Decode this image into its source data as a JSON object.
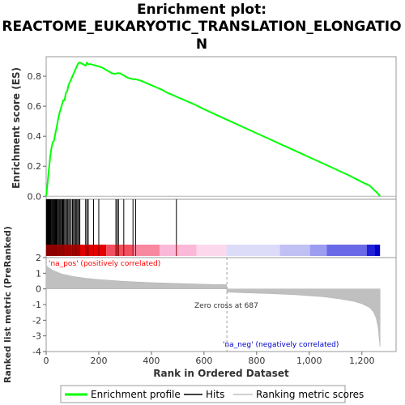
{
  "chart_data": [
    {
      "type": "line",
      "title": "Enrichment plot: REACTOME_EUKARYOTIC_TRANSLATION_ELONGATION",
      "title_lines": [
        "Enrichment plot:",
        "REACTOME_EUKARYOTIC_TRANSLATION_ELONGATIO",
        "N"
      ],
      "ylabel": "Enrichment score (ES)",
      "xlim": [
        0,
        1330
      ],
      "ylim": [
        -0.02,
        0.93
      ],
      "yticks": [
        0.0,
        0.2,
        0.4,
        0.6,
        0.8
      ],
      "ytick_labels": [
        "0.0",
        "0.2",
        "0.4",
        "0.6",
        "0.8"
      ],
      "grid": false,
      "series": [
        {
          "name": "Enrichment profile",
          "color": "#00ff00",
          "x": [
            0,
            5,
            10,
            15,
            20,
            25,
            30,
            35,
            40,
            45,
            50,
            55,
            60,
            65,
            70,
            75,
            80,
            85,
            90,
            95,
            100,
            105,
            110,
            115,
            120,
            125,
            130,
            140,
            150,
            155,
            160,
            170,
            180,
            190,
            200,
            210,
            220,
            230,
            240,
            250,
            260,
            270,
            280,
            290,
            300,
            310,
            320,
            330,
            340,
            350,
            360,
            380,
            400,
            420,
            440,
            460,
            480,
            500,
            520,
            560,
            600,
            650,
            700,
            750,
            800,
            850,
            900,
            950,
            1000,
            1050,
            1100,
            1150,
            1200,
            1230,
            1260,
            1269
          ],
          "values": [
            0.0,
            0.08,
            0.17,
            0.26,
            0.32,
            0.36,
            0.37,
            0.42,
            0.46,
            0.51,
            0.55,
            0.58,
            0.61,
            0.64,
            0.64,
            0.69,
            0.7,
            0.74,
            0.76,
            0.78,
            0.8,
            0.82,
            0.84,
            0.86,
            0.88,
            0.89,
            0.89,
            0.88,
            0.87,
            0.89,
            0.88,
            0.88,
            0.875,
            0.87,
            0.865,
            0.86,
            0.85,
            0.84,
            0.83,
            0.82,
            0.815,
            0.82,
            0.82,
            0.81,
            0.8,
            0.79,
            0.785,
            0.78,
            0.78,
            0.775,
            0.77,
            0.755,
            0.74,
            0.725,
            0.71,
            0.69,
            0.675,
            0.66,
            0.645,
            0.615,
            0.58,
            0.54,
            0.5,
            0.46,
            0.42,
            0.38,
            0.34,
            0.3,
            0.26,
            0.22,
            0.18,
            0.14,
            0.095,
            0.07,
            0.02,
            0.0
          ]
        }
      ]
    },
    {
      "type": "scatter",
      "name": "Hits",
      "xlim": [
        0,
        1330
      ],
      "hits": [
        1,
        3,
        5,
        7,
        9,
        11,
        13,
        15,
        17,
        19,
        22,
        25,
        28,
        31,
        34,
        37,
        40,
        43,
        47,
        50,
        53,
        56,
        60,
        63,
        66,
        70,
        74,
        78,
        82,
        86,
        90,
        95,
        100,
        104,
        108,
        112,
        116,
        120,
        124,
        128,
        150,
        155,
        160,
        180,
        200,
        265,
        270,
        275,
        295,
        330,
        340,
        495
      ],
      "colorbar": {
        "zero_cross_fraction": 0.54,
        "positive_color": "#ff0000",
        "negative_color": "#0000ff",
        "max_color": "#ff0000",
        "min_color": "#0000ff"
      }
    },
    {
      "type": "area",
      "xlabel": "Rank in Ordered Dataset",
      "ylabel": "Ranked list metric (PreRanked)",
      "xlim": [
        0,
        1330
      ],
      "ylim": [
        -4,
        2
      ],
      "xticks": [
        0,
        200,
        400,
        600,
        800,
        1000,
        1200
      ],
      "xtick_labels": [
        "0",
        "200",
        "400",
        "600",
        "800",
        "1,000",
        "1,200"
      ],
      "yticks": [
        -4,
        -3,
        -2,
        -1,
        0,
        1,
        2
      ],
      "ytick_labels": [
        "-4",
        "-3",
        "-2",
        "-1",
        "0",
        "1",
        "2"
      ],
      "x": [
        0,
        10,
        30,
        60,
        100,
        150,
        200,
        300,
        400,
        500,
        600,
        686,
        687,
        750,
        850,
        950,
        1050,
        1120,
        1170,
        1200,
        1230,
        1245,
        1255,
        1262,
        1266,
        1269
      ],
      "values": [
        1.5,
        1.35,
        1.15,
        0.95,
        0.8,
        0.68,
        0.6,
        0.48,
        0.4,
        0.35,
        0.3,
        0.27,
        -0.2,
        -0.25,
        -0.3,
        -0.38,
        -0.5,
        -0.65,
        -0.8,
        -0.95,
        -1.2,
        -1.5,
        -1.9,
        -2.5,
        -3.2,
        -3.7
      ],
      "fill_color": "#c0c0c0",
      "zero_cross": 687,
      "annotations": {
        "pos_label": "'na_pos' (positively correlated)",
        "neg_label": "'na_neg' (negatively correlated)",
        "zero_cross_label": "Zero cross at 687"
      }
    }
  ],
  "legend": {
    "items": [
      {
        "label": "Enrichment profile",
        "color": "#00ff00",
        "kind": "line"
      },
      {
        "label": "Hits",
        "color": "#000000",
        "kind": "line"
      },
      {
        "label": "Ranking metric scores",
        "color": "#c0c0c0",
        "kind": "line"
      }
    ]
  }
}
